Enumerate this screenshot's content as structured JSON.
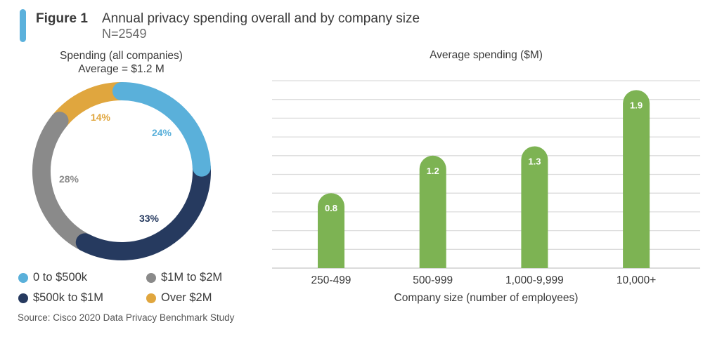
{
  "header": {
    "figure_label": "Figure 1",
    "title": "Annual privacy spending overall and by company size",
    "sample": "N=2549",
    "accent_color": "#5bb1dc"
  },
  "source": "Source:  Cisco 2020 Data Privacy Benchmark Study",
  "chart_data": [
    {
      "type": "pie",
      "donut": true,
      "title": "Spending (all companies)",
      "subtitle": "Average = $1.2 M",
      "slices": [
        {
          "label": "0 to $500k",
          "value": 24,
          "display": "24%",
          "color": "#5ab0da"
        },
        {
          "label": "$500k to $1M",
          "value": 33,
          "display": "33%",
          "color": "#263a5f"
        },
        {
          "label": "$1M to $2M",
          "value": 28,
          "display": "28%",
          "color": "#8a8a8a"
        },
        {
          "label": "Over $2M",
          "value": 14,
          "display": "14%",
          "color": "#e0a63e"
        }
      ],
      "legend": [
        {
          "label": "0 to $500k",
          "color": "#5ab0da"
        },
        {
          "label": "$1M to $2M",
          "color": "#8a8a8a"
        },
        {
          "label": "$500k to $1M",
          "color": "#263a5f"
        },
        {
          "label": "Over $2M",
          "color": "#e0a63e"
        }
      ],
      "legend_placement": "bottom"
    },
    {
      "type": "bar",
      "title": "Average spending ($M)",
      "categories": [
        "250-499",
        "500-999",
        "1,000-9,999",
        "10,000+"
      ],
      "values": [
        0.8,
        1.2,
        1.3,
        1.9
      ],
      "data_labels": [
        "0.8",
        "1.2",
        "1.3",
        "1.9"
      ],
      "xlabel": "Company size (number of employees)",
      "ylabel": "",
      "ylim": [
        0,
        2.0
      ],
      "gridline_step": 0.2,
      "grid": true,
      "bar_color": "#7db353"
    }
  ]
}
